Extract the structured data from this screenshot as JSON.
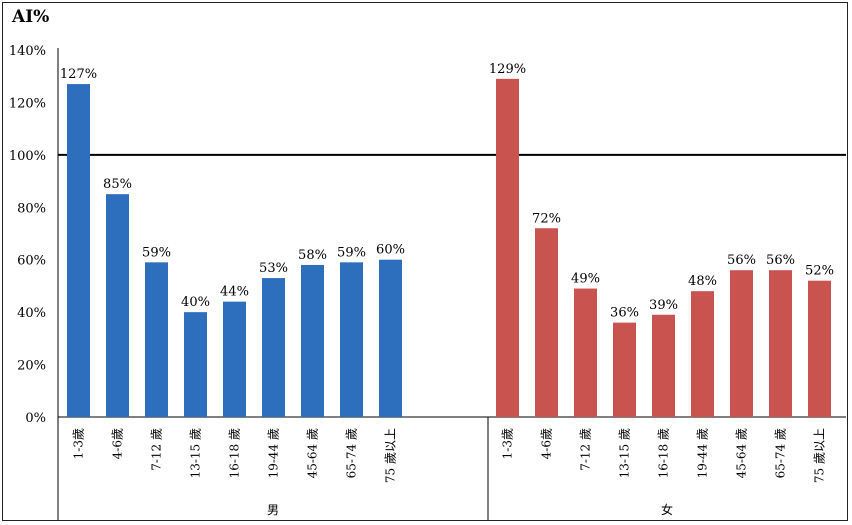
{
  "chart_data": {
    "type": "bar",
    "ylabel": "AI%",
    "ylim": [
      0,
      140
    ],
    "yticks": [
      "0%",
      "20%",
      "40%",
      "60%",
      "80%",
      "100%",
      "120%",
      "140%"
    ],
    "reference_line": 100,
    "groups": [
      {
        "name": "男",
        "color": "#2e6fbd",
        "categories": [
          "1-3歲",
          "4-6歲",
          "7-12 歲",
          "13-15 歲",
          "16-18 歲",
          "19-44 歲",
          "45-64 歲",
          "65-74 歲",
          "75 歲以上"
        ],
        "values": [
          127,
          85,
          59,
          40,
          44,
          53,
          58,
          59,
          60
        ],
        "labels": [
          "127%",
          "85%",
          "59%",
          "40%",
          "44%",
          "53%",
          "58%",
          "59%",
          "60%"
        ]
      },
      {
        "name": "女",
        "color": "#c9534f",
        "categories": [
          "1-3歲",
          "4-6歲",
          "7-12 歲",
          "13-15 歲",
          "16-18 歲",
          "19-44 歲",
          "45-64 歲",
          "65-74 歲",
          "75 歲以上"
        ],
        "values": [
          129,
          72,
          49,
          36,
          39,
          48,
          56,
          56,
          52
        ],
        "labels": [
          "129%",
          "72%",
          "49%",
          "36%",
          "39%",
          "48%",
          "56%",
          "56%",
          "52%"
        ]
      }
    ],
    "grid": false,
    "legend": "none"
  }
}
